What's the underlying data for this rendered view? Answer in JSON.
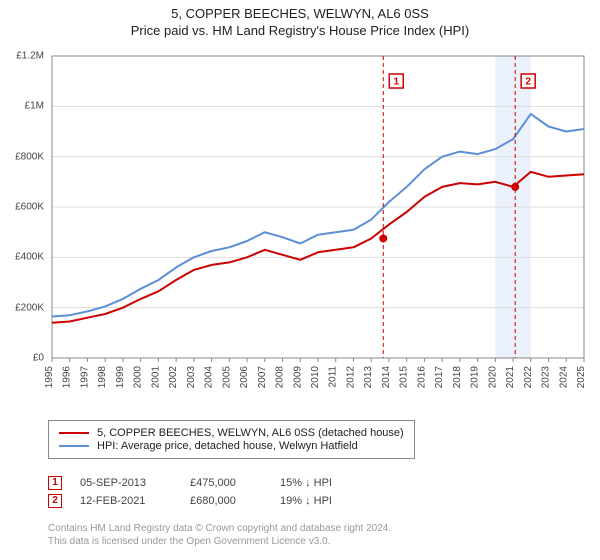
{
  "title": "5, COPPER BEECHES, WELWYN, AL6 0SS",
  "subtitle": "Price paid vs. HM Land Registry's House Price Index (HPI)",
  "chart": {
    "type": "line",
    "background_color": "#ffffff",
    "grid_color": "#dddddd",
    "axis_color": "#888888",
    "axis_font_size": 10,
    "y": {
      "min": 0,
      "max": 1200000,
      "ticks": [
        0,
        200000,
        400000,
        600000,
        800000,
        1000000,
        1200000
      ],
      "tick_labels": [
        "£0",
        "£200K",
        "£400K",
        "£600K",
        "£800K",
        "£1M",
        "£1.2M"
      ]
    },
    "x": {
      "min": 1995,
      "max": 2025,
      "ticks": [
        1995,
        1996,
        1997,
        1998,
        1999,
        2000,
        2001,
        2002,
        2003,
        2004,
        2005,
        2006,
        2007,
        2008,
        2009,
        2010,
        2011,
        2012,
        2013,
        2014,
        2015,
        2016,
        2017,
        2018,
        2019,
        2020,
        2021,
        2022,
        2023,
        2024,
        2025
      ],
      "labels_rotated": true
    },
    "series": [
      {
        "name": "property",
        "label": "5, COPPER BEECHES, WELWYN, AL6 0SS (detached house)",
        "color": "#cc0000",
        "line_width": 2,
        "data": [
          [
            1995,
            140000
          ],
          [
            1996,
            145000
          ],
          [
            1997,
            160000
          ],
          [
            1998,
            175000
          ],
          [
            1999,
            200000
          ],
          [
            2000,
            235000
          ],
          [
            2001,
            265000
          ],
          [
            2002,
            310000
          ],
          [
            2003,
            350000
          ],
          [
            2004,
            370000
          ],
          [
            2005,
            380000
          ],
          [
            2006,
            400000
          ],
          [
            2007,
            430000
          ],
          [
            2008,
            410000
          ],
          [
            2009,
            390000
          ],
          [
            2010,
            420000
          ],
          [
            2011,
            430000
          ],
          [
            2012,
            440000
          ],
          [
            2013,
            475000
          ],
          [
            2014,
            530000
          ],
          [
            2015,
            580000
          ],
          [
            2016,
            640000
          ],
          [
            2017,
            680000
          ],
          [
            2018,
            695000
          ],
          [
            2019,
            690000
          ],
          [
            2020,
            700000
          ],
          [
            2021,
            680000
          ],
          [
            2022,
            740000
          ],
          [
            2023,
            720000
          ],
          [
            2024,
            725000
          ],
          [
            2025,
            730000
          ]
        ]
      },
      {
        "name": "hpi",
        "label": "HPI: Average price, detached house, Welwyn Hatfield",
        "color": "#5b8fd6",
        "line_width": 2,
        "data": [
          [
            1995,
            165000
          ],
          [
            1996,
            170000
          ],
          [
            1997,
            185000
          ],
          [
            1998,
            205000
          ],
          [
            1999,
            235000
          ],
          [
            2000,
            275000
          ],
          [
            2001,
            310000
          ],
          [
            2002,
            360000
          ],
          [
            2003,
            400000
          ],
          [
            2004,
            425000
          ],
          [
            2005,
            440000
          ],
          [
            2006,
            465000
          ],
          [
            2007,
            500000
          ],
          [
            2008,
            480000
          ],
          [
            2009,
            455000
          ],
          [
            2010,
            490000
          ],
          [
            2011,
            500000
          ],
          [
            2012,
            510000
          ],
          [
            2013,
            550000
          ],
          [
            2014,
            620000
          ],
          [
            2015,
            680000
          ],
          [
            2016,
            750000
          ],
          [
            2017,
            800000
          ],
          [
            2018,
            820000
          ],
          [
            2019,
            810000
          ],
          [
            2020,
            830000
          ],
          [
            2021,
            870000
          ],
          [
            2022,
            970000
          ],
          [
            2023,
            920000
          ],
          [
            2024,
            900000
          ],
          [
            2025,
            910000
          ]
        ]
      }
    ],
    "sale_markers": [
      {
        "index": 1,
        "x": 2013.68,
        "y": 475000,
        "color": "#cc0000",
        "line_dash": "4 3"
      },
      {
        "index": 2,
        "x": 2021.12,
        "y": 680000,
        "color": "#cc0000",
        "line_dash": "4 3"
      }
    ],
    "shaded_region": {
      "x_start": 2020.0,
      "x_end": 2022.0,
      "fill": "#eaf1fb"
    },
    "marker_label_border": "#cc0000",
    "marker_label_bg": "#ffffff",
    "marker_label_fontsize": 10
  },
  "legend": {
    "rows": [
      {
        "color": "#cc0000",
        "text": "5, COPPER BEECHES, WELWYN, AL6 0SS (detached house)"
      },
      {
        "color": "#5b8fd6",
        "text": "HPI: Average price, detached house, Welwyn Hatfield"
      }
    ],
    "font_size": 11,
    "border_color": "#888888"
  },
  "events": {
    "rows": [
      {
        "num": "1",
        "border_color": "#cc0000",
        "date": "05-SEP-2013",
        "price": "£475,000",
        "diff": "15% ↓ HPI"
      },
      {
        "num": "2",
        "border_color": "#cc0000",
        "date": "12-FEB-2021",
        "price": "£680,000",
        "diff": "19% ↓ HPI"
      }
    ],
    "font_size": 11,
    "text_color": "#444444"
  },
  "footer": {
    "line1": "Contains HM Land Registry data © Crown copyright and database right 2024.",
    "line2": "This data is licensed under the Open Government Licence v3.0.",
    "font_size": 10,
    "color": "#999999"
  }
}
